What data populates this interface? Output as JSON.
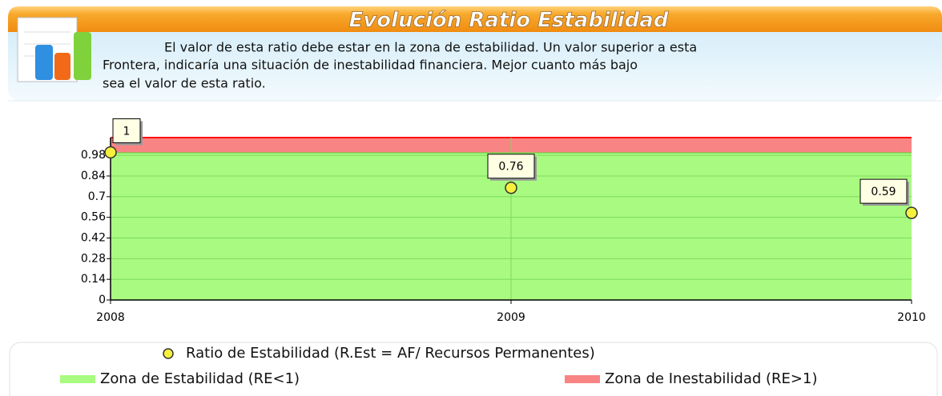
{
  "header": {
    "title": "Evolución Ratio Estabilidad",
    "description": [
      "El valor de esta ratio debe estar en la zona de estabilidad. Un valor superior a esta",
      "Frontera, indicaría una situación de inestabilidad financiera. Mejor cuanto más bajo",
      "sea el valor de esta ratio."
    ]
  },
  "chart_data": {
    "type": "line",
    "categories": [
      "2008",
      "2009",
      "2010"
    ],
    "ylim": [
      0,
      1.1
    ],
    "yticks": [
      0,
      0.14,
      0.28,
      0.42,
      0.56,
      0.7,
      0.84,
      0.98
    ],
    "grid": true,
    "series": [
      {
        "name": "Ratio de Estabilidad (R.Est = AF/ Recursos Permanentes)",
        "type": "scatter",
        "color": "#f5f03c",
        "values": [
          1,
          0.76,
          0.59
        ]
      },
      {
        "name": "Zona de Estabilidad (RE<1)",
        "type": "area",
        "color": "#a8fb80",
        "values": [
          1,
          1,
          1
        ]
      },
      {
        "name": "Zona de Inestabilidad (RE>1)",
        "type": "area",
        "stacked": true,
        "color": "#f98484",
        "values": [
          0.1,
          0.1,
          0.1
        ]
      }
    ]
  }
}
